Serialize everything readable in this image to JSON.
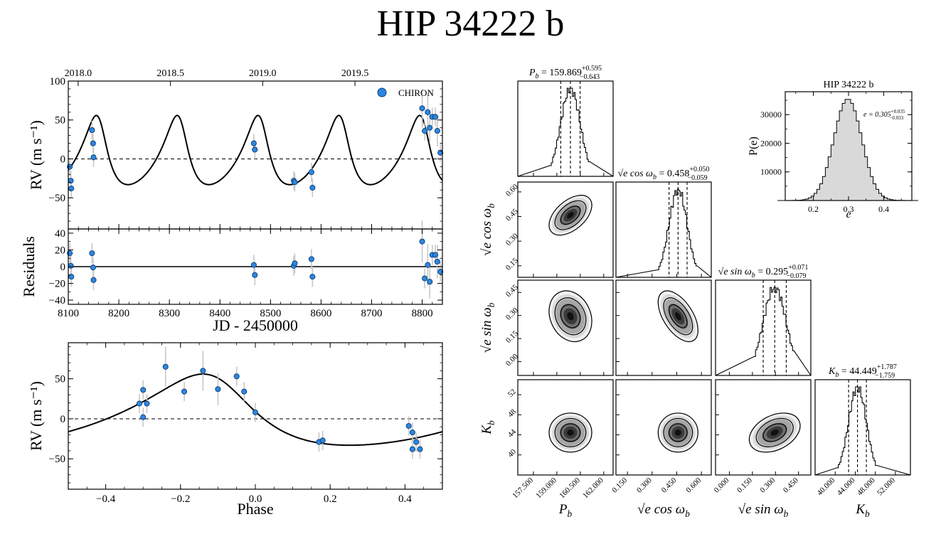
{
  "page_title": "HIP 34222 b",
  "colors": {
    "point": "#2e86de",
    "point_edge": "#0b3c72",
    "errbar": "#c8c8c8",
    "hist_fill": "#d9d9d9"
  },
  "chart_data": [
    {
      "id": "rv_time",
      "type": "scatter",
      "title": "",
      "ylabel": "RV (m s⁻¹)",
      "xlim": [
        8100,
        8840
      ],
      "ylim": [
        -90,
        100
      ],
      "yticks": [
        -50,
        0,
        50,
        100
      ],
      "top_axis_ticks": [
        {
          "label": "2018.0",
          "x": 8119.5
        },
        {
          "label": "2018.5",
          "x": 8302.1
        },
        {
          "label": "2019.0",
          "x": 8484.5
        },
        {
          "label": "2019.5",
          "x": 8667.1
        }
      ],
      "legend": {
        "label": "CHIRON",
        "position": "top-right"
      },
      "model": {
        "period": 159.869,
        "K": 44.449,
        "e": 0.305,
        "omega_deg": 32.8,
        "t_peak": 8155.5
      },
      "series": [
        {
          "name": "CHIRON",
          "x": [
            8103,
            8105,
            8106,
            8147,
            8149,
            8150,
            8467,
            8469,
            8546,
            8548,
            8581,
            8583,
            8800,
            8805,
            8811,
            8815,
            8820,
            8826,
            8830,
            8836
          ],
          "y": [
            -10,
            -28,
            -38,
            37,
            20,
            2,
            20,
            12,
            -28,
            -30,
            -17,
            -37,
            65,
            36,
            60,
            40,
            54,
            54,
            36,
            8
          ],
          "err": [
            12,
            12,
            12,
            12,
            12,
            12,
            12,
            12,
            12,
            12,
            12,
            12,
            25,
            12,
            25,
            20,
            12,
            12,
            20,
            12
          ]
        }
      ]
    },
    {
      "id": "residuals",
      "type": "scatter",
      "xlabel": "JD - 2450000",
      "ylabel": "Residuals",
      "xlim": [
        8100,
        8840
      ],
      "ylim": [
        -45,
        45
      ],
      "xticks": [
        8100,
        8200,
        8300,
        8400,
        8500,
        8600,
        8700,
        8800
      ],
      "yticks": [
        -40,
        -20,
        0,
        20,
        40
      ],
      "series": [
        {
          "name": "CHIRON",
          "x": [
            8103,
            8105,
            8106,
            8147,
            8149,
            8150,
            8467,
            8469,
            8546,
            8548,
            8581,
            8583,
            8800,
            8805,
            8811,
            8815,
            8820,
            8826,
            8830,
            8836
          ],
          "y": [
            16,
            1,
            -12,
            16,
            -1,
            -16,
            2,
            -10,
            1,
            4,
            9,
            -12,
            30,
            -14,
            2,
            -18,
            14,
            14,
            6,
            -6
          ],
          "err": [
            12,
            12,
            12,
            12,
            12,
            12,
            12,
            12,
            12,
            12,
            12,
            12,
            25,
            12,
            25,
            20,
            12,
            12,
            20,
            12
          ]
        }
      ]
    },
    {
      "id": "rv_phase",
      "type": "scatter",
      "xlabel": "Phase",
      "ylabel": "RV (m s⁻¹)",
      "xlim": [
        -0.5,
        0.5
      ],
      "ylim": [
        -88,
        95
      ],
      "xticks": [
        -0.4,
        -0.2,
        0.0,
        0.2,
        0.4
      ],
      "xticklabels": [
        "−0.4",
        "−0.2",
        "0.0",
        "0.2",
        "0.4"
      ],
      "yticks": [
        -50,
        0,
        50
      ],
      "series": [
        {
          "name": "CHIRON",
          "x": [
            -0.31,
            -0.3,
            -0.3,
            -0.29,
            -0.24,
            -0.19,
            -0.14,
            -0.1,
            -0.05,
            -0.03,
            0.0,
            0.17,
            0.18,
            0.41,
            0.42,
            0.42,
            0.43,
            0.44
          ],
          "y": [
            19,
            2,
            36,
            19,
            65,
            34,
            60,
            37,
            53,
            34,
            8,
            -29,
            -27,
            -9,
            -17,
            -38,
            -29,
            -38
          ],
          "err": [
            12,
            12,
            12,
            12,
            25,
            12,
            25,
            20,
            12,
            12,
            12,
            12,
            12,
            12,
            12,
            12,
            12,
            12
          ]
        }
      ]
    },
    {
      "id": "corner",
      "type": "corner",
      "parameters": [
        "P_b",
        "√e cos ω_b",
        "√e sin ω_b",
        "K_b"
      ],
      "medians": [
        159.869,
        0.458,
        0.295,
        44.449
      ],
      "sigmas": [
        0.62,
        0.055,
        0.075,
        1.77
      ],
      "titles": [
        {
          "name": "P_b",
          "value": "159.869",
          "plus": "+0.595",
          "minus": "−0.643"
        },
        {
          "name": "√e cos ω_b",
          "value": "0.458",
          "plus": "+0.050",
          "minus": "−0.059"
        },
        {
          "name": "√e sin ω_b",
          "value": "0.295",
          "plus": "+0.071",
          "minus": "−0.079"
        },
        {
          "name": "K_b",
          "value": "44.449",
          "plus": "+1.787",
          "minus": "−1.759"
        }
      ],
      "ranges": [
        [
          156.5,
          162.6
        ],
        [
          0.08,
          0.66
        ],
        [
          -0.09,
          0.53
        ],
        [
          36.0,
          55.0
        ]
      ],
      "ticks": [
        [
          "157.500",
          "159.000",
          "160.500",
          "162.000"
        ],
        [
          "0.150",
          "0.300",
          "0.450",
          "0.600"
        ],
        [
          "0.000",
          "0.150",
          "0.300",
          "0.450"
        ],
        [
          "40.000",
          "44.000",
          "48.000",
          "52.000"
        ]
      ],
      "left_ticks": [
        null,
        [
          "0.15",
          "0.30",
          "0.45",
          "0.60"
        ],
        [
          "0.00",
          "0.15",
          "0.30",
          "0.45"
        ],
        [
          "40",
          "44",
          "48",
          "52"
        ]
      ],
      "correlations": [
        [
          1,
          0.5,
          -0.2,
          0
        ],
        [
          0.5,
          1,
          -0.55,
          0
        ],
        [
          -0.2,
          -0.55,
          1,
          0.35
        ],
        [
          0,
          0,
          0.35,
          1
        ]
      ]
    },
    {
      "id": "ecc_hist",
      "type": "histogram",
      "title": "HIP 34222 b",
      "xlabel": "e",
      "ylabel": "P(e)",
      "annotation": {
        "text": "e = 0.305",
        "plus": "+0.035",
        "minus": "−0.033"
      },
      "xlim": [
        0.12,
        0.48
      ],
      "ylim": [
        0,
        38000
      ],
      "xticks": [
        0.2,
        0.3,
        0.4
      ],
      "yticks": [
        10000,
        20000,
        30000
      ],
      "mean": 0.298,
      "sigma": 0.04,
      "peak": 35500
    }
  ]
}
